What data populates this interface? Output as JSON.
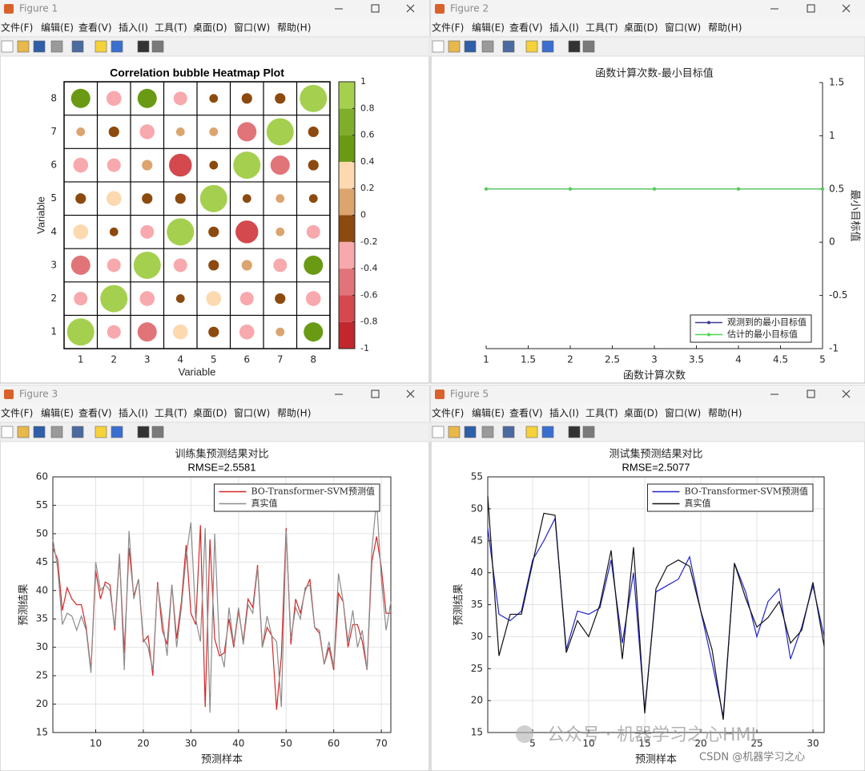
{
  "windows": [
    {
      "title": "Figure 1"
    },
    {
      "title": "Figure 2"
    },
    {
      "title": "Figure 3"
    },
    {
      "title": "Figure 5"
    }
  ],
  "menu": [
    "文件(F)",
    "编辑(E)",
    "查看(V)",
    "插入(I)",
    "工具(T)",
    "桌面(D)",
    "窗口(W)",
    "帮助(H)"
  ],
  "watermark": "公众号 · 机器学习之心HML",
  "credit": "CSDN @机器学习之心",
  "chart_data": [
    {
      "type": "bubble_heatmap",
      "title": "Correlation bubble Heatmap Plot",
      "xlabel": "Variable",
      "ylabel": "Variable",
      "xticks": [
        1,
        2,
        3,
        4,
        5,
        6,
        7,
        8
      ],
      "yticks": [
        1,
        2,
        3,
        4,
        5,
        6,
        7,
        8
      ],
      "xlim": [
        0.5,
        8.5
      ],
      "ylim": [
        0.5,
        8.5
      ],
      "values": [
        [
          1,
          -0.25,
          -0.5,
          0.3,
          -0.15,
          -0.3,
          0.1,
          0.5
        ],
        [
          -0.25,
          1,
          -0.3,
          -0.1,
          0.3,
          -0.25,
          -0.15,
          -0.3
        ],
        [
          -0.5,
          -0.25,
          1,
          -0.25,
          -0.15,
          0.15,
          -0.25,
          0.5
        ],
        [
          0.3,
          -0.1,
          -0.25,
          1,
          -0.15,
          -0.7,
          0.1,
          -0.25
        ],
        [
          -0.15,
          0.3,
          -0.15,
          -0.15,
          1,
          -0.1,
          0.1,
          -0.1
        ],
        [
          -0.3,
          -0.25,
          0.15,
          -0.7,
          -0.1,
          1,
          -0.5,
          -0.15
        ],
        [
          0.1,
          -0.15,
          -0.3,
          0.1,
          0.1,
          -0.5,
          1,
          -0.15
        ],
        [
          0.5,
          -0.3,
          0.5,
          -0.25,
          -0.1,
          -0.15,
          -0.15,
          1
        ]
      ],
      "clim": [
        -1,
        1
      ],
      "colors": [
        "#c1272d",
        "#d3494e",
        "#e17479",
        "#f8a9ad",
        "#8c4a0f",
        "#dca46f",
        "#fcd9ae",
        "#6a9a14",
        "#7fad2c",
        "#a5d04f"
      ],
      "cticks": [
        -1,
        -0.8,
        -0.6,
        -0.4,
        -0.2,
        0,
        0.2,
        0.4,
        0.6,
        0.8,
        1
      ]
    },
    {
      "type": "line",
      "title": "函数计算次数-最小目标值",
      "xlabel": "函数计算次数",
      "ylabel": "最小目标值",
      "yaxis_side": "right",
      "grid": false,
      "box": false,
      "marker": true,
      "legend": "southeast",
      "x": [
        1,
        2,
        3,
        4,
        5
      ],
      "xlim": [
        1,
        5
      ],
      "xticks": [
        1,
        1.5,
        2,
        2.5,
        3,
        3.5,
        4,
        4.5,
        5
      ],
      "ylim": [
        -1,
        1.5
      ],
      "yticks": [
        -1,
        -0.5,
        0,
        0.5,
        1,
        1.5
      ],
      "series": [
        {
          "name": "观测到的最小目标值",
          "color": "#3b3b8f",
          "values": [
            0.5,
            0.5,
            0.5,
            0.5,
            0.5
          ]
        },
        {
          "name": "估计的最小目标值",
          "color": "#4cd64c",
          "values": [
            0.5,
            0.5,
            0.5,
            0.5,
            0.5
          ]
        }
      ]
    },
    {
      "type": "line",
      "title": "训练集预测结果对比",
      "subtitle": "RMSE=2.5581",
      "xlabel": "预测样本",
      "ylabel": "预测结果",
      "yaxis_side": "left",
      "grid": true,
      "box": true,
      "marker": false,
      "legend": "northeast",
      "x": [
        1,
        2,
        3,
        4,
        5,
        6,
        7,
        8,
        9,
        10,
        11,
        12,
        13,
        14,
        15,
        16,
        17,
        18,
        19,
        20,
        21,
        22,
        23,
        24,
        25,
        26,
        27,
        28,
        29,
        30,
        31,
        32,
        33,
        34,
        35,
        36,
        37,
        38,
        39,
        40,
        41,
        42,
        43,
        44,
        45,
        46,
        47,
        48,
        49,
        50,
        51,
        52,
        53,
        54,
        55,
        56,
        57,
        58,
        59,
        60,
        61,
        62,
        63,
        64,
        65,
        66,
        67,
        68,
        69,
        70,
        71,
        72
      ],
      "xlim": [
        1,
        72
      ],
      "xticks": [
        10,
        20,
        30,
        40,
        50,
        60,
        70
      ],
      "ylim": [
        15,
        60
      ],
      "yticks": [
        15,
        20,
        25,
        30,
        35,
        40,
        45,
        50,
        55,
        60
      ],
      "series": [
        {
          "name": "BO-Transformer-SVM预测值",
          "color": "#d62728",
          "values": [
            47.5,
            45.5,
            36.5,
            40.5,
            38.5,
            37.5,
            37.5,
            33.5,
            26,
            43.5,
            38.5,
            41.5,
            41,
            33,
            46,
            29,
            47.5,
            39,
            42,
            31,
            32,
            25,
            41.5,
            33,
            30.5,
            41,
            31.5,
            38,
            48,
            36,
            34,
            51.5,
            19.5,
            49,
            31.5,
            28.5,
            29,
            35,
            30,
            36.5,
            31,
            38.5,
            37,
            44.5,
            30,
            33.5,
            32,
            19,
            28.5,
            51,
            30.5,
            38.5,
            36,
            40,
            42,
            33.5,
            32.5,
            27,
            30,
            26,
            39.5,
            38,
            30,
            34,
            34,
            31,
            26,
            45,
            49.5,
            44,
            36,
            36
          ]
        },
        {
          "name": "真实值",
          "color": "#8c8c8c",
          "values": [
            49,
            44,
            34,
            36,
            35.5,
            33,
            35.5,
            33,
            25.5,
            45,
            40,
            41,
            40,
            33.5,
            46.5,
            26,
            50.5,
            38.5,
            42,
            31.5,
            30,
            26,
            41,
            35,
            28.5,
            41,
            30,
            37,
            46,
            52,
            35,
            31,
            51,
            18.5,
            50,
            30,
            26.5,
            37,
            30.5,
            37,
            30.5,
            37.5,
            36,
            44,
            30,
            35.5,
            32,
            31,
            19.5,
            50.5,
            31.5,
            37,
            35,
            40.5,
            41,
            33.5,
            33,
            27,
            31,
            26.5,
            43,
            38,
            31,
            36.5,
            30,
            33,
            26,
            47,
            56,
            42,
            33,
            38
          ]
        }
      ]
    },
    {
      "type": "line",
      "title": "测试集预测结果对比",
      "subtitle": "RMSE=2.5077",
      "xlabel": "预测样本",
      "ylabel": "预测结果",
      "yaxis_side": "left",
      "grid": true,
      "box": true,
      "marker": false,
      "legend": "northeast",
      "x": [
        1,
        2,
        3,
        4,
        5,
        6,
        7,
        8,
        9,
        10,
        11,
        12,
        13,
        14,
        15,
        16,
        17,
        18,
        19,
        20,
        21,
        22,
        23,
        24,
        25,
        26,
        27,
        28,
        29,
        30,
        31
      ],
      "xlim": [
        1,
        31
      ],
      "xticks": [
        5,
        10,
        15,
        20,
        25,
        30
      ],
      "ylim": [
        15,
        55
      ],
      "yticks": [
        15,
        20,
        25,
        30,
        35,
        40,
        45,
        50,
        55
      ],
      "series": [
        {
          "name": "BO-Transformer-SVM预测值",
          "color": "#2323c8",
          "values": [
            47,
            33.5,
            32.5,
            34,
            42,
            45,
            48.5,
            28,
            34,
            33.5,
            34.5,
            42,
            29,
            40,
            18.5,
            37,
            38,
            39,
            42.5,
            34,
            26,
            17.5,
            41.5,
            37,
            30,
            35.5,
            37.5,
            26.5,
            31.5,
            38,
            30
          ]
        },
        {
          "name": "真实值",
          "color": "#111111",
          "values": [
            52,
            27,
            33.5,
            33.5,
            41.5,
            49.3,
            49,
            27.5,
            32.5,
            30,
            35,
            43.5,
            26.5,
            44,
            18,
            37.5,
            41,
            42,
            41,
            34,
            28,
            17,
            41.5,
            36,
            31.5,
            33,
            35.5,
            29,
            31,
            38.5,
            28.5
          ]
        }
      ]
    }
  ]
}
